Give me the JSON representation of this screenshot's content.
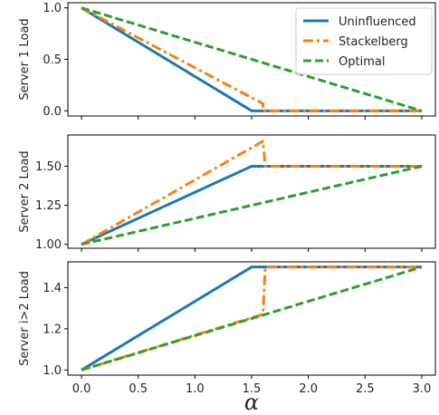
{
  "chart_data": {
    "type": "line",
    "xlabel": "α",
    "xticks": [
      "0.0",
      "0.5",
      "1.0",
      "1.5",
      "2.0",
      "2.5",
      "3.0"
    ],
    "xtick_values": [
      0,
      0.5,
      1.0,
      1.5,
      2.0,
      2.5,
      3.0
    ],
    "xlim": [
      -0.12,
      3.12
    ],
    "legend": {
      "placement": "top-right",
      "entries": [
        {
          "name": "Uninfluenced",
          "color": "#1f77b4",
          "style": "solid"
        },
        {
          "name": "Stackelberg",
          "color": "#ff7f0e",
          "style": "dashdot"
        },
        {
          "name": "Optimal",
          "color": "#2ca02c",
          "style": "dashed"
        }
      ]
    },
    "panels": [
      {
        "ylabel": "Server 1 Load",
        "ylim": [
          -0.05,
          1.05
        ],
        "yticks": [
          0.0,
          0.5,
          1.0
        ],
        "ytick_labels": [
          "0.0",
          "0.5",
          "1.0"
        ],
        "series": [
          {
            "name": "Uninfluenced",
            "color": "#1f77b4",
            "style": "solid",
            "x": [
              0,
              1.5,
              3.0
            ],
            "y": [
              1.0,
              0.0,
              0.0
            ]
          },
          {
            "name": "Stackelberg",
            "color": "#ff7f0e",
            "style": "dashdot",
            "x": [
              0,
              1.6,
              1.6,
              3.0
            ],
            "y": [
              1.0,
              0.07,
              0.0,
              0.0
            ]
          },
          {
            "name": "Optimal",
            "color": "#2ca02c",
            "style": "dashed",
            "x": [
              0,
              3.0
            ],
            "y": [
              1.0,
              0.0
            ]
          }
        ]
      },
      {
        "ylabel": "Server 2 Load",
        "ylim": [
          0.975,
          1.7
        ],
        "yticks": [
          1.0,
          1.25,
          1.5
        ],
        "ytick_labels": [
          "1.00",
          "1.25",
          "1.50"
        ],
        "series": [
          {
            "name": "Uninfluenced",
            "color": "#1f77b4",
            "style": "solid",
            "x": [
              0,
              1.5,
              3.0
            ],
            "y": [
              1.0,
              1.5,
              1.5
            ]
          },
          {
            "name": "Stackelberg",
            "color": "#ff7f0e",
            "style": "dashdot",
            "x": [
              0,
              1.6,
              1.62,
              3.0
            ],
            "y": [
              1.0,
              1.66,
              1.5,
              1.5
            ]
          },
          {
            "name": "Optimal",
            "color": "#2ca02c",
            "style": "dashed",
            "x": [
              0,
              3.0
            ],
            "y": [
              1.0,
              1.5
            ]
          }
        ]
      },
      {
        "ylabel": "Server i>2 Load",
        "ylim": [
          0.975,
          1.525
        ],
        "yticks": [
          1.0,
          1.2,
          1.4
        ],
        "ytick_labels": [
          "1.0",
          "1.2",
          "1.4"
        ],
        "series": [
          {
            "name": "Uninfluenced",
            "color": "#1f77b4",
            "style": "solid",
            "x": [
              0,
              1.5,
              3.0
            ],
            "y": [
              1.0,
              1.5,
              1.5
            ]
          },
          {
            "name": "Stackelberg",
            "color": "#ff7f0e",
            "style": "dashdot",
            "x": [
              0,
              1.6,
              1.62,
              3.0
            ],
            "y": [
              1.0,
              1.27,
              1.5,
              1.5
            ]
          },
          {
            "name": "Optimal",
            "color": "#2ca02c",
            "style": "dashed",
            "x": [
              0,
              3.0
            ],
            "y": [
              1.0,
              1.5
            ]
          }
        ]
      }
    ]
  }
}
